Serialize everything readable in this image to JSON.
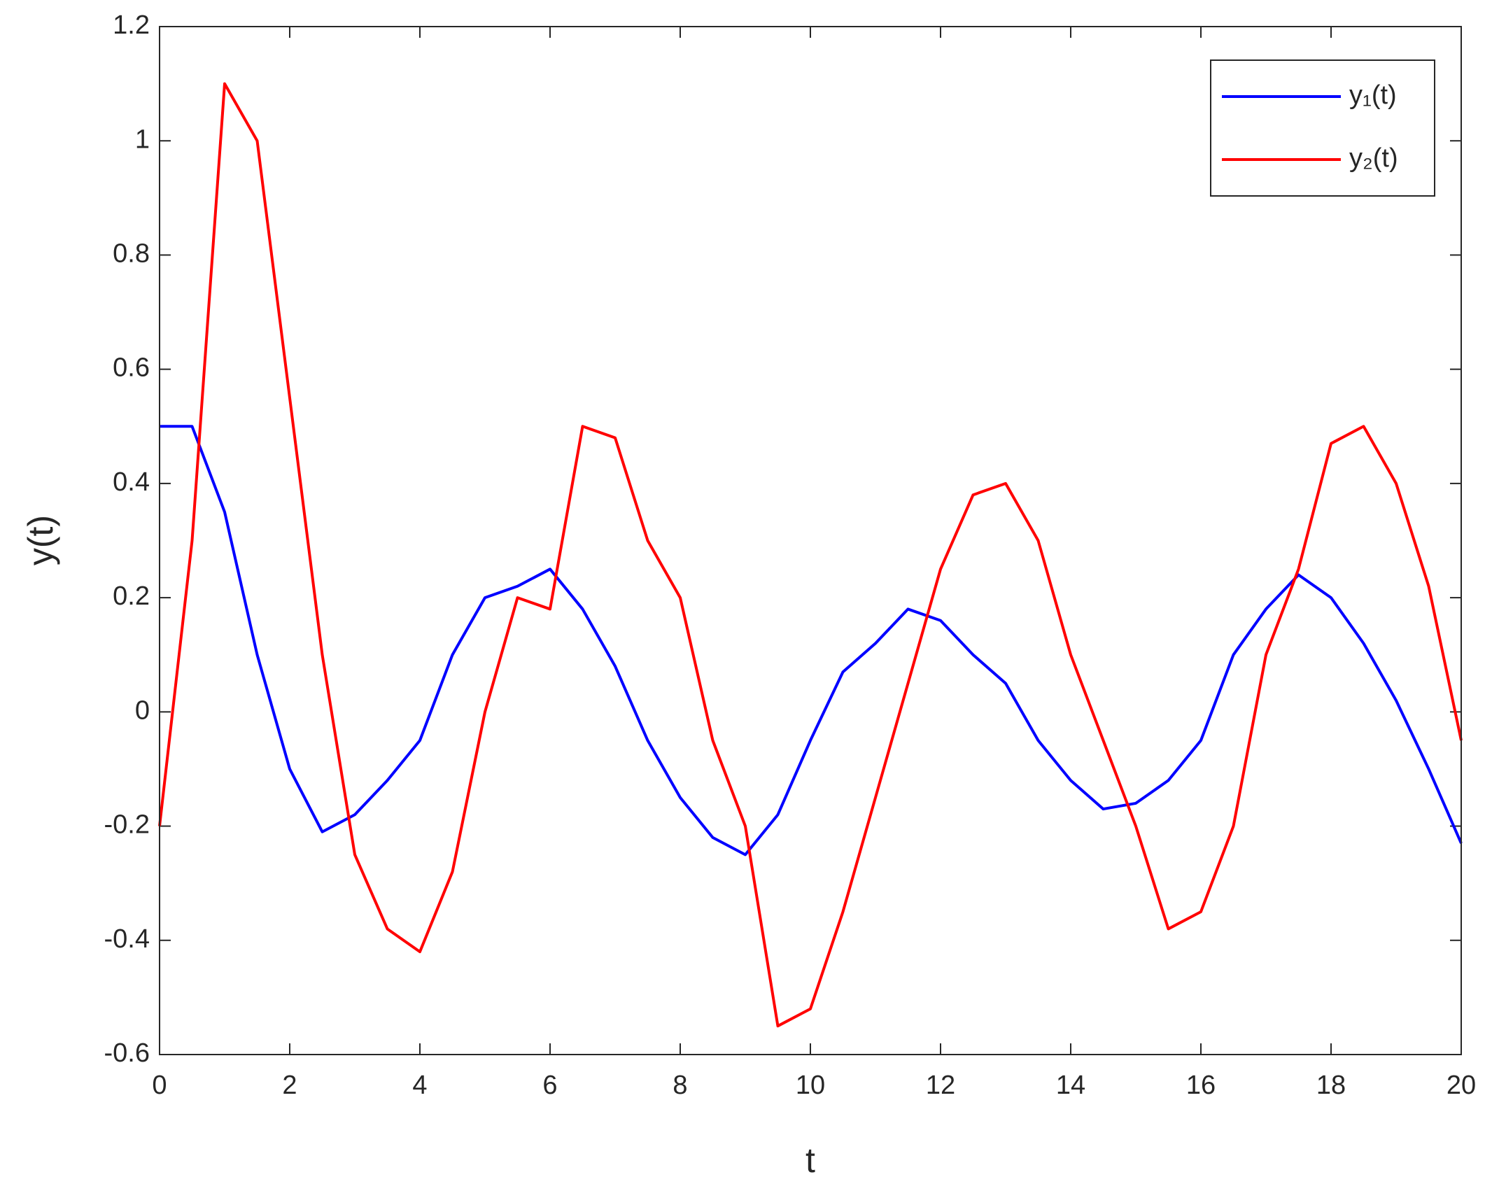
{
  "chart_data": {
    "type": "line",
    "xlabel": "t",
    "ylabel": "y(t)",
    "x": [
      0,
      0.5,
      1,
      1.5,
      2,
      2.5,
      3,
      3.5,
      4,
      4.5,
      5,
      5.5,
      6,
      6.5,
      7,
      7.5,
      8,
      8.5,
      9,
      9.5,
      10,
      10.5,
      11,
      11.5,
      12,
      12.5,
      13,
      13.5,
      14,
      14.5,
      15,
      15.5,
      16,
      16.5,
      17,
      17.5,
      18,
      18.5,
      19,
      19.5,
      20
    ],
    "series": [
      {
        "name": "y₁(t)",
        "color": "#0000ff",
        "values": [
          0.5,
          0.5,
          0.35,
          0.1,
          -0.1,
          -0.21,
          -0.18,
          -0.12,
          -0.05,
          0.1,
          0.2,
          0.22,
          0.25,
          0.18,
          0.08,
          -0.05,
          -0.15,
          -0.22,
          -0.25,
          -0.18,
          -0.05,
          0.07,
          0.12,
          0.18,
          0.16,
          0.1,
          0.05,
          -0.05,
          -0.12,
          -0.17,
          -0.16,
          -0.12,
          -0.05,
          0.1,
          0.18,
          0.24,
          0.2,
          0.12,
          0.02,
          -0.1,
          -0.23
        ]
      },
      {
        "name": "y₂(t)",
        "color": "#ff0000",
        "values": [
          -0.2,
          0.3,
          1.1,
          1.0,
          0.55,
          0.1,
          -0.25,
          -0.38,
          -0.42,
          -0.28,
          0.0,
          0.2,
          0.18,
          0.5,
          0.48,
          0.3,
          0.2,
          -0.05,
          -0.2,
          -0.55,
          -0.52,
          -0.35,
          -0.15,
          0.05,
          0.25,
          0.38,
          0.4,
          0.3,
          0.1,
          -0.05,
          -0.2,
          -0.38,
          -0.35,
          -0.2,
          0.1,
          0.25,
          0.47,
          0.5,
          0.4,
          0.22,
          -0.05
        ]
      }
    ],
    "xlim": [
      0,
      20
    ],
    "xticks": [
      0,
      2,
      4,
      6,
      8,
      10,
      12,
      14,
      16,
      18,
      20
    ],
    "ylim": [
      -0.6,
      1.2
    ],
    "yticks": [
      -0.6,
      -0.4,
      -0.2,
      0,
      0.2,
      0.4,
      0.6,
      0.8,
      1,
      1.2
    ],
    "grid": false,
    "legend": "northeast"
  }
}
